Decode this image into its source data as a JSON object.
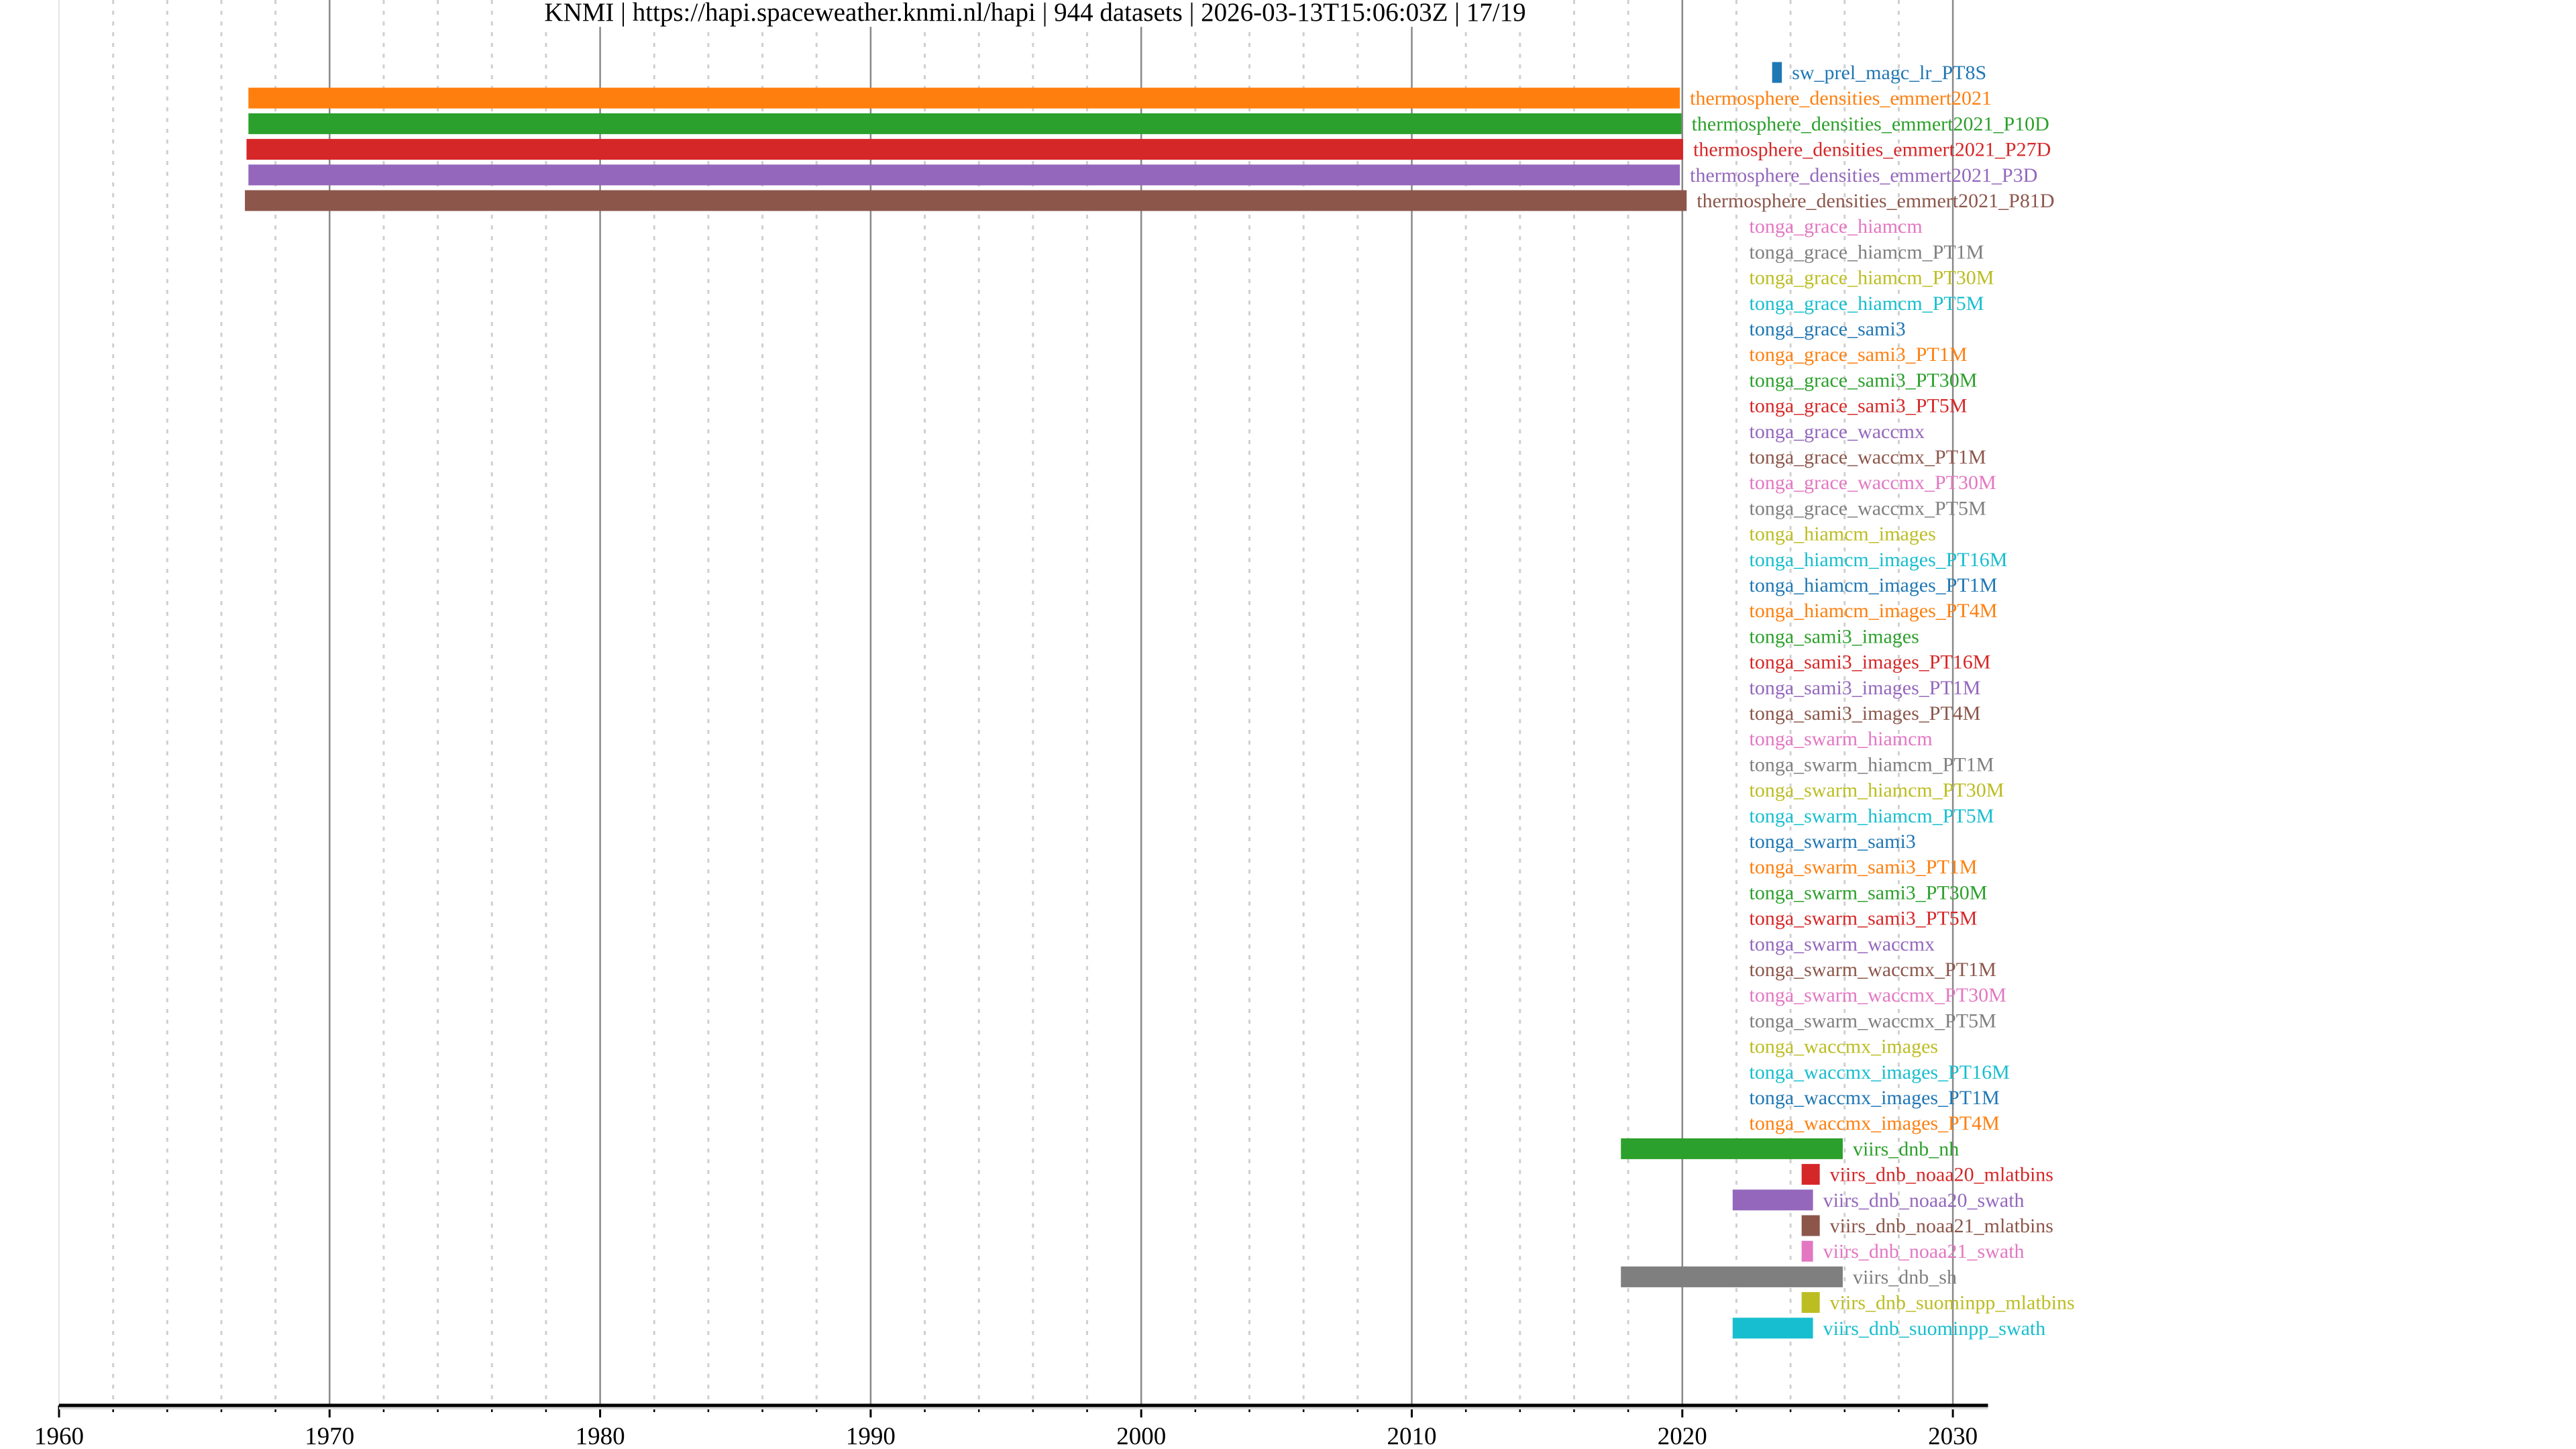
{
  "chart_data": {
    "type": "gantt-bar",
    "title": "KNMI | https://hapi.spaceweather.knmi.nl/hapi | 944 datasets | 2026-03-13T15:06:03Z | 17/19",
    "xlabel": "",
    "ylabel": "",
    "xlim": [
      1960,
      2031.3
    ],
    "xticks": [
      "1960",
      "1970",
      "1980",
      "1990",
      "2000",
      "2010",
      "2020",
      "2030"
    ],
    "minor_tick_step_years": 2,
    "grid": true,
    "palette": [
      "#1f77b4",
      "#ff7f0e",
      "#2ca02c",
      "#d62728",
      "#9467bd",
      "#8c564b",
      "#e377c2",
      "#7f7f7f",
      "#bcbd22",
      "#17becf"
    ],
    "series": [
      {
        "name": "sw_prel_magc_lr_PT8S",
        "start": 2023.32,
        "end": 2023.68
      },
      {
        "name": "thermosphere_densities_emmert2021",
        "start": 1967.0,
        "end": 2019.91
      },
      {
        "name": "thermosphere_densities_emmert2021_P10D",
        "start": 1967.0,
        "end": 2019.97
      },
      {
        "name": "thermosphere_densities_emmert2021_P27D",
        "start": 1966.93,
        "end": 2020.03
      },
      {
        "name": "thermosphere_densities_emmert2021_P3D",
        "start": 1967.0,
        "end": 2019.91
      },
      {
        "name": "thermosphere_densities_emmert2021_P81D",
        "start": 1966.87,
        "end": 2020.16
      },
      {
        "name": "tonga_grace_hiamcm",
        "start": 2022.1,
        "end": 2022.1
      },
      {
        "name": "tonga_grace_hiamcm_PT1M",
        "start": 2022.1,
        "end": 2022.1
      },
      {
        "name": "tonga_grace_hiamcm_PT30M",
        "start": 2022.1,
        "end": 2022.1
      },
      {
        "name": "tonga_grace_hiamcm_PT5M",
        "start": 2022.1,
        "end": 2022.1
      },
      {
        "name": "tonga_grace_sami3",
        "start": 2022.1,
        "end": 2022.1
      },
      {
        "name": "tonga_grace_sami3_PT1M",
        "start": 2022.1,
        "end": 2022.1
      },
      {
        "name": "tonga_grace_sami3_PT30M",
        "start": 2022.1,
        "end": 2022.1
      },
      {
        "name": "tonga_grace_sami3_PT5M",
        "start": 2022.1,
        "end": 2022.1
      },
      {
        "name": "tonga_grace_waccmx",
        "start": 2022.1,
        "end": 2022.1
      },
      {
        "name": "tonga_grace_waccmx_PT1M",
        "start": 2022.1,
        "end": 2022.1
      },
      {
        "name": "tonga_grace_waccmx_PT30M",
        "start": 2022.1,
        "end": 2022.1
      },
      {
        "name": "tonga_grace_waccmx_PT5M",
        "start": 2022.1,
        "end": 2022.1
      },
      {
        "name": "tonga_hiamcm_images",
        "start": 2022.1,
        "end": 2022.1
      },
      {
        "name": "tonga_hiamcm_images_PT16M",
        "start": 2022.1,
        "end": 2022.1
      },
      {
        "name": "tonga_hiamcm_images_PT1M",
        "start": 2022.1,
        "end": 2022.1
      },
      {
        "name": "tonga_hiamcm_images_PT4M",
        "start": 2022.1,
        "end": 2022.1
      },
      {
        "name": "tonga_sami3_images",
        "start": 2022.1,
        "end": 2022.1
      },
      {
        "name": "tonga_sami3_images_PT16M",
        "start": 2022.1,
        "end": 2022.1
      },
      {
        "name": "tonga_sami3_images_PT1M",
        "start": 2022.1,
        "end": 2022.1
      },
      {
        "name": "tonga_sami3_images_PT4M",
        "start": 2022.1,
        "end": 2022.1
      },
      {
        "name": "tonga_swarm_hiamcm",
        "start": 2022.1,
        "end": 2022.1
      },
      {
        "name": "tonga_swarm_hiamcm_PT1M",
        "start": 2022.1,
        "end": 2022.1
      },
      {
        "name": "tonga_swarm_hiamcm_PT30M",
        "start": 2022.1,
        "end": 2022.1
      },
      {
        "name": "tonga_swarm_hiamcm_PT5M",
        "start": 2022.1,
        "end": 2022.1
      },
      {
        "name": "tonga_swarm_sami3",
        "start": 2022.1,
        "end": 2022.1
      },
      {
        "name": "tonga_swarm_sami3_PT1M",
        "start": 2022.1,
        "end": 2022.1
      },
      {
        "name": "tonga_swarm_sami3_PT30M",
        "start": 2022.1,
        "end": 2022.1
      },
      {
        "name": "tonga_swarm_sami3_PT5M",
        "start": 2022.1,
        "end": 2022.1
      },
      {
        "name": "tonga_swarm_waccmx",
        "start": 2022.1,
        "end": 2022.1
      },
      {
        "name": "tonga_swarm_waccmx_PT1M",
        "start": 2022.1,
        "end": 2022.1
      },
      {
        "name": "tonga_swarm_waccmx_PT30M",
        "start": 2022.1,
        "end": 2022.1
      },
      {
        "name": "tonga_swarm_waccmx_PT5M",
        "start": 2022.1,
        "end": 2022.1
      },
      {
        "name": "tonga_waccmx_images",
        "start": 2022.1,
        "end": 2022.1
      },
      {
        "name": "tonga_waccmx_images_PT16M",
        "start": 2022.1,
        "end": 2022.1
      },
      {
        "name": "tonga_waccmx_images_PT1M",
        "start": 2022.1,
        "end": 2022.1
      },
      {
        "name": "tonga_waccmx_images_PT4M",
        "start": 2022.1,
        "end": 2022.1
      },
      {
        "name": "viirs_dnb_nh",
        "start": 2017.73,
        "end": 2025.93
      },
      {
        "name": "viirs_dnb_noaa20_mlatbins",
        "start": 2024.41,
        "end": 2025.08
      },
      {
        "name": "viirs_dnb_noaa20_swath",
        "start": 2021.86,
        "end": 2024.83
      },
      {
        "name": "viirs_dnb_noaa21_mlatbins",
        "start": 2024.41,
        "end": 2025.08
      },
      {
        "name": "viirs_dnb_noaa21_swath",
        "start": 2024.41,
        "end": 2024.83
      },
      {
        "name": "viirs_dnb_sh",
        "start": 2017.73,
        "end": 2025.93
      },
      {
        "name": "viirs_dnb_suominpp_mlatbins",
        "start": 2024.41,
        "end": 2025.08
      },
      {
        "name": "viirs_dnb_suominpp_swath",
        "start": 2021.86,
        "end": 2024.83
      }
    ]
  }
}
